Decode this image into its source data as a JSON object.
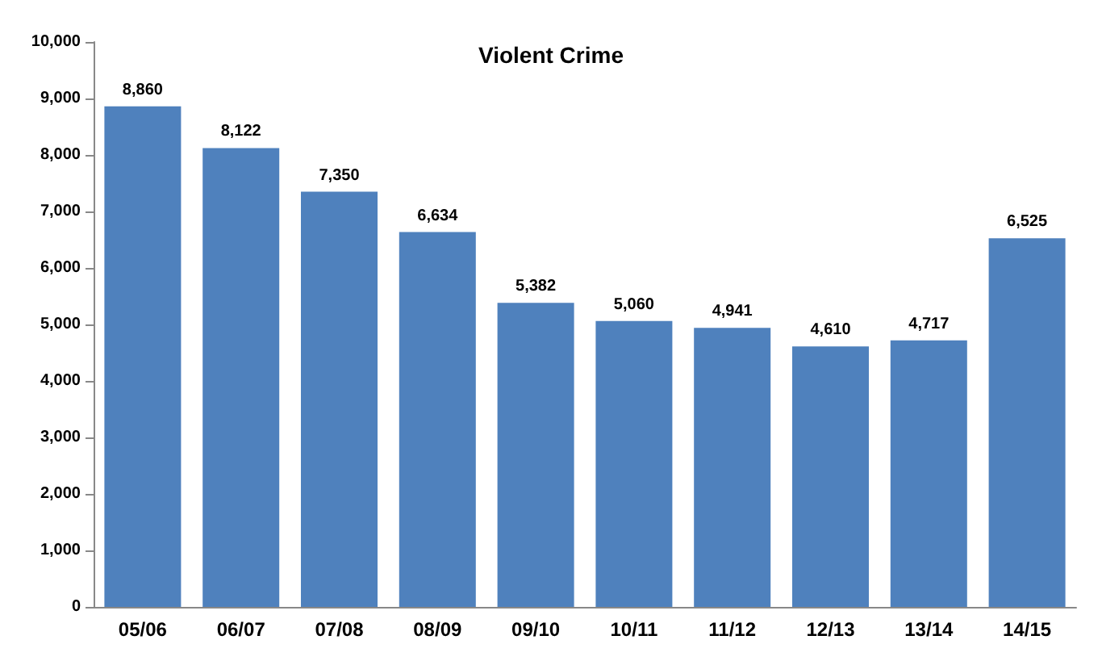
{
  "chart_data": {
    "type": "bar",
    "title": "Violent Crime",
    "categories": [
      "05/06",
      "06/07",
      "07/08",
      "08/09",
      "09/10",
      "10/11",
      "11/12",
      "12/13",
      "13/14",
      "14/15"
    ],
    "values": [
      8860,
      8122,
      7350,
      6634,
      5382,
      5060,
      4941,
      4610,
      4717,
      6525
    ],
    "value_labels": [
      "8,860",
      "8,122",
      "7,350",
      "6,634",
      "5,382",
      "5,060",
      "4,941",
      "4,610",
      "4,717",
      "6,525"
    ],
    "color": "#4f81bd",
    "ylim": [
      0,
      10000
    ],
    "yticks": [
      0,
      {
        "value": 1000,
        "label": "1,000"
      },
      {
        "value": 2000,
        "label": "2,000"
      },
      {
        "value": 3000,
        "label": "3,000"
      },
      {
        "value": 4000,
        "label": "4,000"
      },
      {
        "value": 5000,
        "label": "5,000"
      },
      {
        "value": 6000,
        "label": "6,000"
      },
      {
        "value": 7000,
        "label": "7,000"
      },
      {
        "value": 8000,
        "label": "8,000"
      },
      {
        "value": 9000,
        "label": "9,000"
      },
      {
        "value": 10000,
        "label": "10,000"
      }
    ],
    "grid": false
  }
}
